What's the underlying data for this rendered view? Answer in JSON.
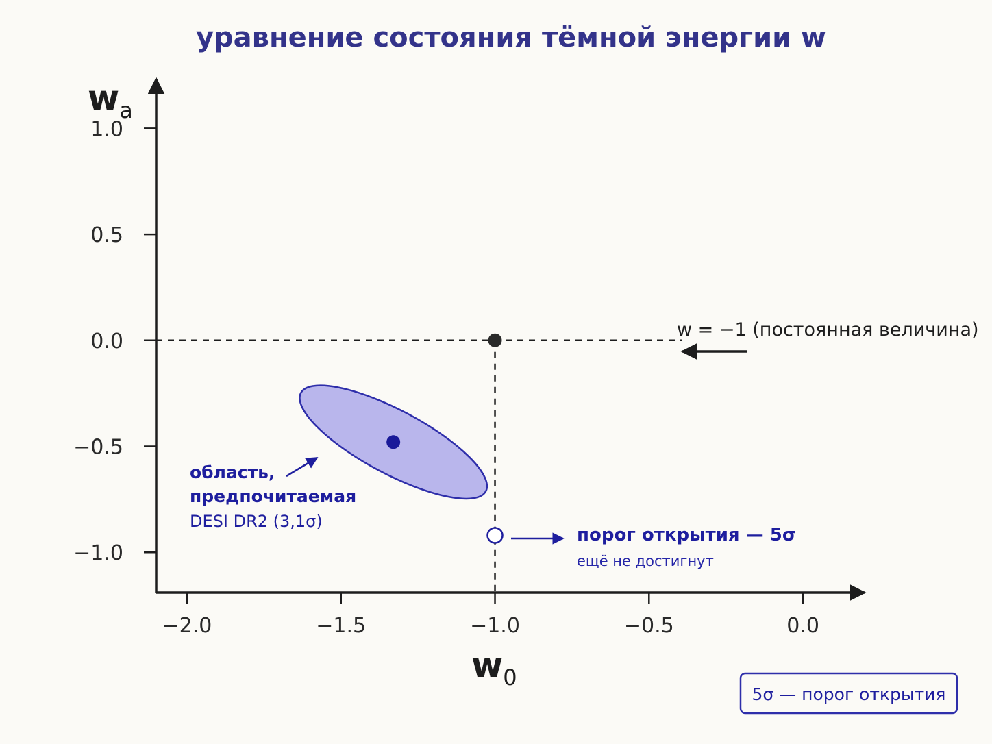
{
  "chart_data": {
    "type": "scatter",
    "title": "уравнение состояния тёмной энергии w",
    "xlabel": {
      "main": "w",
      "sub": "0"
    },
    "ylabel": {
      "main": "w",
      "sub": "a"
    },
    "xlim": [
      -2.1,
      0.2
    ],
    "ylim": [
      -1.19,
      1.25
    ],
    "x_ticks": [
      -2.0,
      -1.5,
      -1.0,
      -0.5,
      0.0
    ],
    "x_tick_labels": [
      "−2.0",
      "−1.5",
      "−1.0",
      "−0.5",
      "0.0"
    ],
    "y_ticks": [
      1.0,
      0.5,
      0.0,
      -0.5,
      -1.0
    ],
    "y_tick_labels": [
      "1.0",
      "0.5",
      "0.0",
      "−0.5",
      "−1.0"
    ],
    "grid": false,
    "reference_point": {
      "x": -1.0,
      "y": 0.0,
      "label": "w = −1 (постоянная величина)",
      "color": "#2a2a2a"
    },
    "preferred_region": {
      "center": {
        "x": -1.33,
        "y": -0.48
      },
      "half_width": 0.34,
      "half_height": 0.15,
      "rotation_deg": 28,
      "fill": "#b9b6ec",
      "stroke": "#2e2eaa",
      "label_lines": [
        "область,",
        "предпочитаемая",
        "DESI DR2 (3,1σ)"
      ]
    },
    "threshold_point": {
      "x": -1.0,
      "y": -0.92,
      "label": "порог открытия — 5σ",
      "sublabel": "ещё не достигнут"
    },
    "legend": {
      "text": "5σ — порог открытия",
      "placement": "bottom-right"
    }
  }
}
